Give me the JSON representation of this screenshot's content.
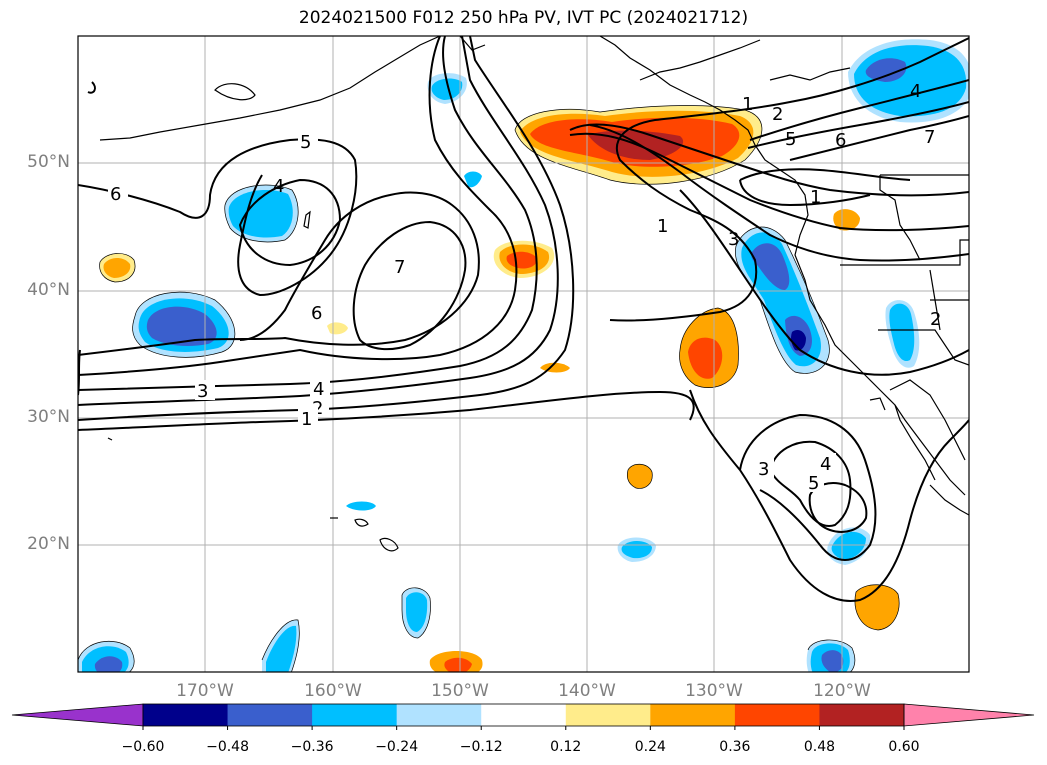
{
  "title": "2024021500 F012 250 hPa PV, IVT PC (2024021712)",
  "map": {
    "lon_range": [
      -180,
      -110
    ],
    "lat_range": [
      10,
      60
    ],
    "lat_labels": [
      {
        "lat": 50,
        "text": "50°N"
      },
      {
        "lat": 40,
        "text": "40°N"
      },
      {
        "lat": 30,
        "text": "30°N"
      },
      {
        "lat": 20,
        "text": "20°N"
      }
    ],
    "lon_labels": [
      {
        "lon": -170,
        "text": "170°W"
      },
      {
        "lon": -160,
        "text": "160°W"
      },
      {
        "lon": -150,
        "text": "150°W"
      },
      {
        "lon": -140,
        "text": "140°W"
      },
      {
        "lon": -130,
        "text": "130°W"
      },
      {
        "lon": -120,
        "text": "120°W"
      }
    ],
    "grid": true
  },
  "contour_labels": [
    {
      "text": "5"
    },
    {
      "text": "6"
    },
    {
      "text": "4"
    },
    {
      "text": "7"
    },
    {
      "text": "6"
    },
    {
      "text": "3"
    },
    {
      "text": "4"
    },
    {
      "text": "2"
    },
    {
      "text": "1"
    },
    {
      "text": "1"
    },
    {
      "text": "2"
    },
    {
      "text": "5"
    },
    {
      "text": "6"
    },
    {
      "text": "4"
    },
    {
      "text": "7"
    },
    {
      "text": "1"
    },
    {
      "text": "3"
    },
    {
      "text": "1"
    },
    {
      "text": "2"
    },
    {
      "text": "3"
    },
    {
      "text": "4"
    },
    {
      "text": "5"
    }
  ],
  "colorbar": {
    "ticks": [
      "−0.60",
      "−0.48",
      "−0.36",
      "−0.24",
      "−0.12",
      "0.12",
      "0.24",
      "0.36",
      "0.48",
      "0.60"
    ],
    "colors": [
      "#9932cc",
      "#00008b",
      "#3a5fcd",
      "#00bfff",
      "#b0e2ff",
      "#ffffff",
      "#ffec8b",
      "#ffa500",
      "#ff4500",
      "#b22222",
      "#ff82ab"
    ]
  }
}
